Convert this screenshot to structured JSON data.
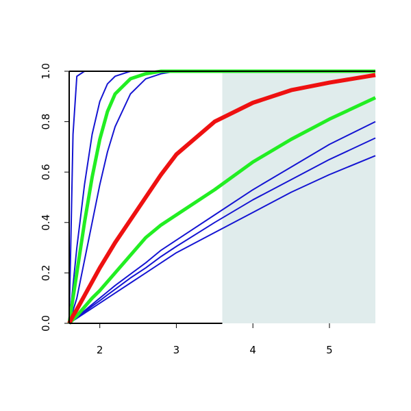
{
  "chart_data": {
    "type": "line",
    "x": [
      1.6,
      1.65,
      1.7,
      1.8,
      1.9,
      2.0,
      2.1,
      2.2,
      2.4,
      2.6,
      2.8,
      3.0,
      3.5,
      4.0,
      4.5,
      5.0,
      5.6
    ],
    "series": [
      {
        "color": "#1414d2",
        "linewidth": 2,
        "values": [
          0,
          0.75,
          0.98,
          1,
          1,
          1,
          1,
          1,
          1,
          1,
          1,
          1,
          1,
          1,
          1,
          1,
          1
        ]
      },
      {
        "color": "#1414d2",
        "linewidth": 2,
        "values": [
          0,
          0.15,
          0.3,
          0.55,
          0.75,
          0.88,
          0.95,
          0.98,
          1,
          1,
          1,
          1,
          1,
          1,
          1,
          1,
          1
        ]
      },
      {
        "color": "#1414d2",
        "linewidth": 2,
        "values": [
          0,
          0.05,
          0.1,
          0.25,
          0.4,
          0.55,
          0.68,
          0.78,
          0.91,
          0.97,
          0.99,
          1,
          1,
          1,
          1,
          1,
          1
        ]
      },
      {
        "color": "#1414d2",
        "linewidth": 2,
        "values": [
          0,
          0.013,
          0.025,
          0.05,
          0.075,
          0.1,
          0.125,
          0.15,
          0.195,
          0.24,
          0.29,
          0.33,
          0.43,
          0.53,
          0.62,
          0.71,
          0.8
        ]
      },
      {
        "color": "#1414d2",
        "linewidth": 2,
        "values": [
          0,
          0.011,
          0.023,
          0.045,
          0.068,
          0.09,
          0.113,
          0.135,
          0.18,
          0.22,
          0.265,
          0.305,
          0.4,
          0.49,
          0.57,
          0.65,
          0.735
        ]
      },
      {
        "color": "#1414d2",
        "linewidth": 2,
        "values": [
          0,
          0.01,
          0.02,
          0.04,
          0.06,
          0.08,
          0.1,
          0.12,
          0.16,
          0.2,
          0.24,
          0.28,
          0.36,
          0.44,
          0.52,
          0.59,
          0.665
        ]
      },
      {
        "color": "#22ee22",
        "linewidth": 5,
        "values": [
          0,
          0.1,
          0.2,
          0.4,
          0.58,
          0.73,
          0.84,
          0.91,
          0.97,
          0.99,
          1,
          1,
          1,
          1,
          1,
          1,
          1
        ]
      },
      {
        "color": "#22ee22",
        "linewidth": 5,
        "values": [
          0,
          0.015,
          0.03,
          0.065,
          0.1,
          0.13,
          0.165,
          0.2,
          0.27,
          0.34,
          0.39,
          0.43,
          0.53,
          0.64,
          0.73,
          0.81,
          0.895
        ]
      },
      {
        "color": "#ee1111",
        "linewidth": 6,
        "values": [
          0,
          0.03,
          0.055,
          0.11,
          0.165,
          0.22,
          0.27,
          0.32,
          0.41,
          0.5,
          0.59,
          0.67,
          0.8,
          0.875,
          0.925,
          0.955,
          0.985
        ]
      }
    ],
    "highlight_xrange": [
      3.6,
      5.6
    ],
    "highlight_color": "#e0ecec",
    "xlim": [
      1.6,
      5.6
    ],
    "ylim": [
      0,
      1
    ],
    "xticks": [
      2,
      3,
      4,
      5
    ],
    "yticks": [
      {
        "value": 0,
        "label": "0.0"
      },
      0.2,
      0.4,
      0.6,
      0.8,
      {
        "value": 1,
        "label": "1.0"
      }
    ]
  }
}
